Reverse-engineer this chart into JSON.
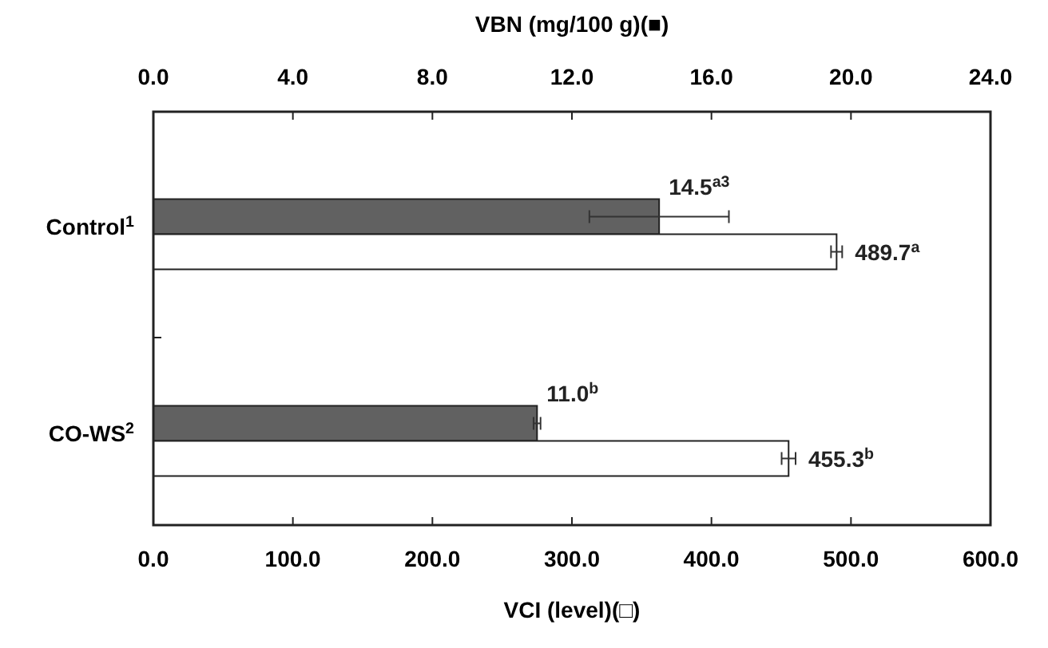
{
  "chart_data": {
    "type": "bar",
    "orientation": "horizontal",
    "categories": [
      "Control$^{1}$",
      "CO-WS$^{2}$"
    ],
    "xlabel": "VCI (level)(□)",
    "x2label": "VBN (mg/100 g)(■)",
    "xlim": [
      0,
      600
    ],
    "xticks": [
      {
        "value": 0,
        "label": "0.0"
      },
      {
        "value": 100,
        "label": "100.0"
      },
      {
        "value": 200,
        "label": "200.0"
      },
      {
        "value": 300,
        "label": "300.0"
      },
      {
        "value": 400,
        "label": "400.0"
      },
      {
        "value": 500,
        "label": "500.0"
      },
      {
        "value": 600,
        "label": "600.0"
      }
    ],
    "x2lim": [
      0,
      24
    ],
    "x2ticks": [
      {
        "value": 0,
        "label": "0.0"
      },
      {
        "value": 4,
        "label": "4.0"
      },
      {
        "value": 8,
        "label": "8.0"
      },
      {
        "value": 12,
        "label": "12.0"
      },
      {
        "value": 16,
        "label": "16.0"
      },
      {
        "value": 20,
        "label": "20.0"
      },
      {
        "value": 24,
        "label": "24.0"
      }
    ],
    "series": [
      {
        "color": "#616161",
        "axis": "x2",
        "values": [
          14.5,
          11.0
        ],
        "errors": [
          2.0,
          0.1
        ],
        "value_labels": [
          "14.5$^{a3}$",
          "11.0$^{b}$"
        ]
      },
      {
        "color": "#ffffff",
        "values": [
          489.7,
          455.3
        ],
        "errors": [
          4,
          5
        ],
        "value_labels": [
          "489.7$^{a}$",
          "455.3$^{b}$"
        ]
      }
    ]
  }
}
